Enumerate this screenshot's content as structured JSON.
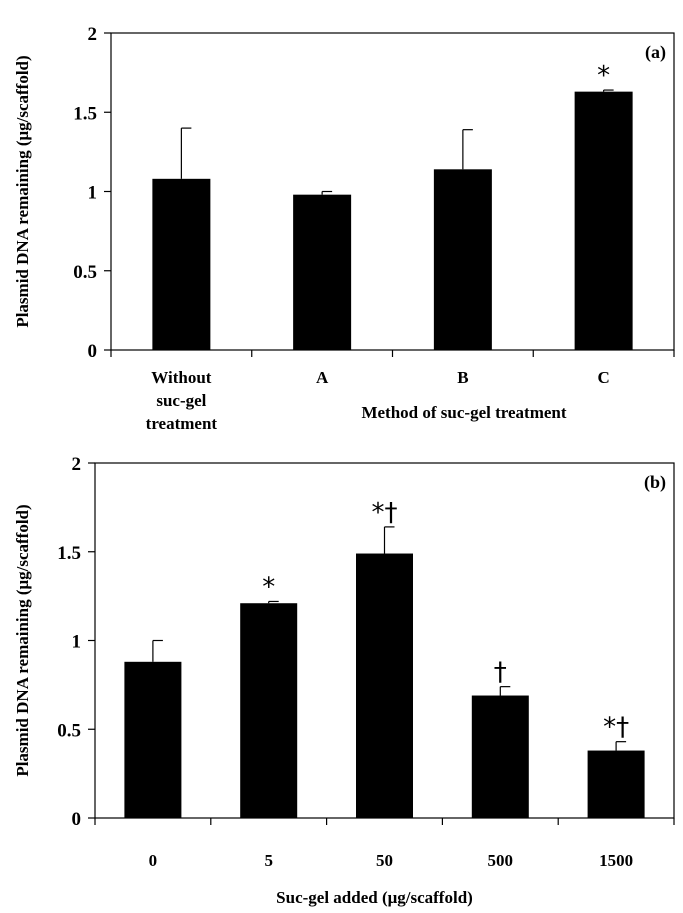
{
  "chart_data": [
    {
      "type": "bar",
      "panel_label": "(a)",
      "categories": [
        [
          "Without",
          "suc-gel",
          "treatment"
        ],
        [
          "A"
        ],
        [
          "B"
        ],
        [
          "C"
        ]
      ],
      "values": [
        1.08,
        0.98,
        1.14,
        1.63
      ],
      "errors": [
        0.32,
        0.02,
        0.25,
        0.01
      ],
      "annotations": [
        "",
        "",
        "",
        "*"
      ],
      "xlabel": "Method of suc-gel treatment",
      "ylabel": "Plasmid DNA remaining (μg/scaffold)",
      "ylim": [
        0,
        2
      ],
      "yticks": [
        "0",
        "0.5",
        "1",
        "1.5",
        "2"
      ],
      "grid": false,
      "bar_color": "#000000"
    },
    {
      "type": "bar",
      "panel_label": "(b)",
      "categories": [
        [
          "0"
        ],
        [
          "5"
        ],
        [
          "50"
        ],
        [
          "500"
        ],
        [
          "1500"
        ]
      ],
      "values": [
        0.88,
        1.21,
        1.49,
        0.69,
        0.38
      ],
      "errors": [
        0.12,
        0.01,
        0.15,
        0.05,
        0.05
      ],
      "annotations": [
        "",
        "*",
        "*†",
        "†",
        "*†"
      ],
      "xlabel": "Suc-gel added (μg/scaffold)",
      "ylabel": "Plasmid DNA remaining (μg/scaffold)",
      "ylim": [
        0,
        2
      ],
      "yticks": [
        "0",
        "0.5",
        "1",
        "1.5",
        "2"
      ],
      "grid": false,
      "bar_color": "#000000"
    }
  ]
}
